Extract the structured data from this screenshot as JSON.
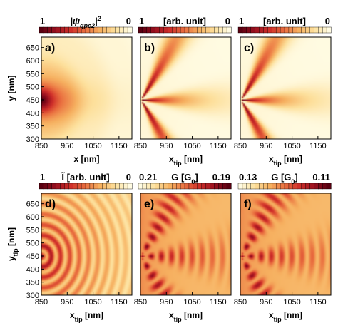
{
  "chart_data": [
    {
      "type": "heatmap",
      "panel_label": "a)",
      "colorbar": {
        "min_label": "1",
        "title": "|ψ qpc2|²",
        "max_label": "0",
        "reversed": true
      },
      "xlabel": "x [nm]",
      "ylabel": "y [nm]",
      "x_ticks": [
        "850",
        "950",
        "1050",
        "1150"
      ],
      "y_ticks": [
        "300",
        "350",
        "400",
        "450",
        "500",
        "550",
        "600",
        "650"
      ],
      "xlim": [
        850,
        1200
      ],
      "ylim": [
        300,
        690
      ],
      "pattern": "lobe"
    },
    {
      "type": "heatmap",
      "panel_label": "b)",
      "colorbar": {
        "min_label": "1",
        "title": "[arb. unit]",
        "max_label": "0",
        "reversed": true
      },
      "xlabel": "x tip [nm]",
      "x_ticks": [
        "850",
        "950",
        "1050",
        "1150"
      ],
      "xlim": [
        850,
        1200
      ],
      "ylim": [
        300,
        690
      ],
      "pattern": "branches"
    },
    {
      "type": "heatmap",
      "panel_label": "c)",
      "colorbar": {
        "min_label": "1",
        "title": "[arb. unit]",
        "max_label": "0",
        "reversed": true
      },
      "xlabel": "x tip [nm]",
      "x_ticks": [
        "850",
        "950",
        "1050",
        "1150"
      ],
      "xlim": [
        850,
        1200
      ],
      "ylim": [
        300,
        690
      ],
      "pattern": "branches"
    },
    {
      "type": "heatmap",
      "panel_label": "d)",
      "colorbar": {
        "min_label": "1",
        "title": "Ĩ [arb. unit]",
        "max_label": "0",
        "reversed": true
      },
      "xlabel": "x tip [nm]",
      "ylabel": "y tip [nm]",
      "x_ticks": [
        "850",
        "950",
        "1050",
        "1150"
      ],
      "y_ticks": [
        "300",
        "350",
        "400",
        "450",
        "500",
        "550",
        "600",
        "650"
      ],
      "xlim": [
        850,
        1200
      ],
      "ylim": [
        300,
        690
      ],
      "pattern": "rings"
    },
    {
      "type": "heatmap",
      "panel_label": "e)",
      "colorbar": {
        "min_label": "0.21",
        "title": "G [G 0]",
        "max_label": "0.19",
        "reversed": false
      },
      "xlabel": "x tip [nm]",
      "x_ticks": [
        "850",
        "950",
        "1050",
        "1150"
      ],
      "xlim": [
        850,
        1200
      ],
      "ylim": [
        300,
        690
      ],
      "pattern": "fringes"
    },
    {
      "type": "heatmap",
      "panel_label": "f)",
      "colorbar": {
        "min_label": "0.13",
        "title": "G [G 0]",
        "max_label": "0.11",
        "reversed": false
      },
      "xlabel": "x tip [nm]",
      "x_ticks": [
        "850",
        "950",
        "1050",
        "1150"
      ],
      "xlim": [
        850,
        1200
      ],
      "ylim": [
        300,
        690
      ],
      "pattern": "fringes"
    }
  ],
  "colors": {
    "colormap": [
      "#5a0010",
      "#9a1020",
      "#d0302a",
      "#ea7040",
      "#f6b060",
      "#fde09c",
      "#fffbe2"
    ]
  }
}
